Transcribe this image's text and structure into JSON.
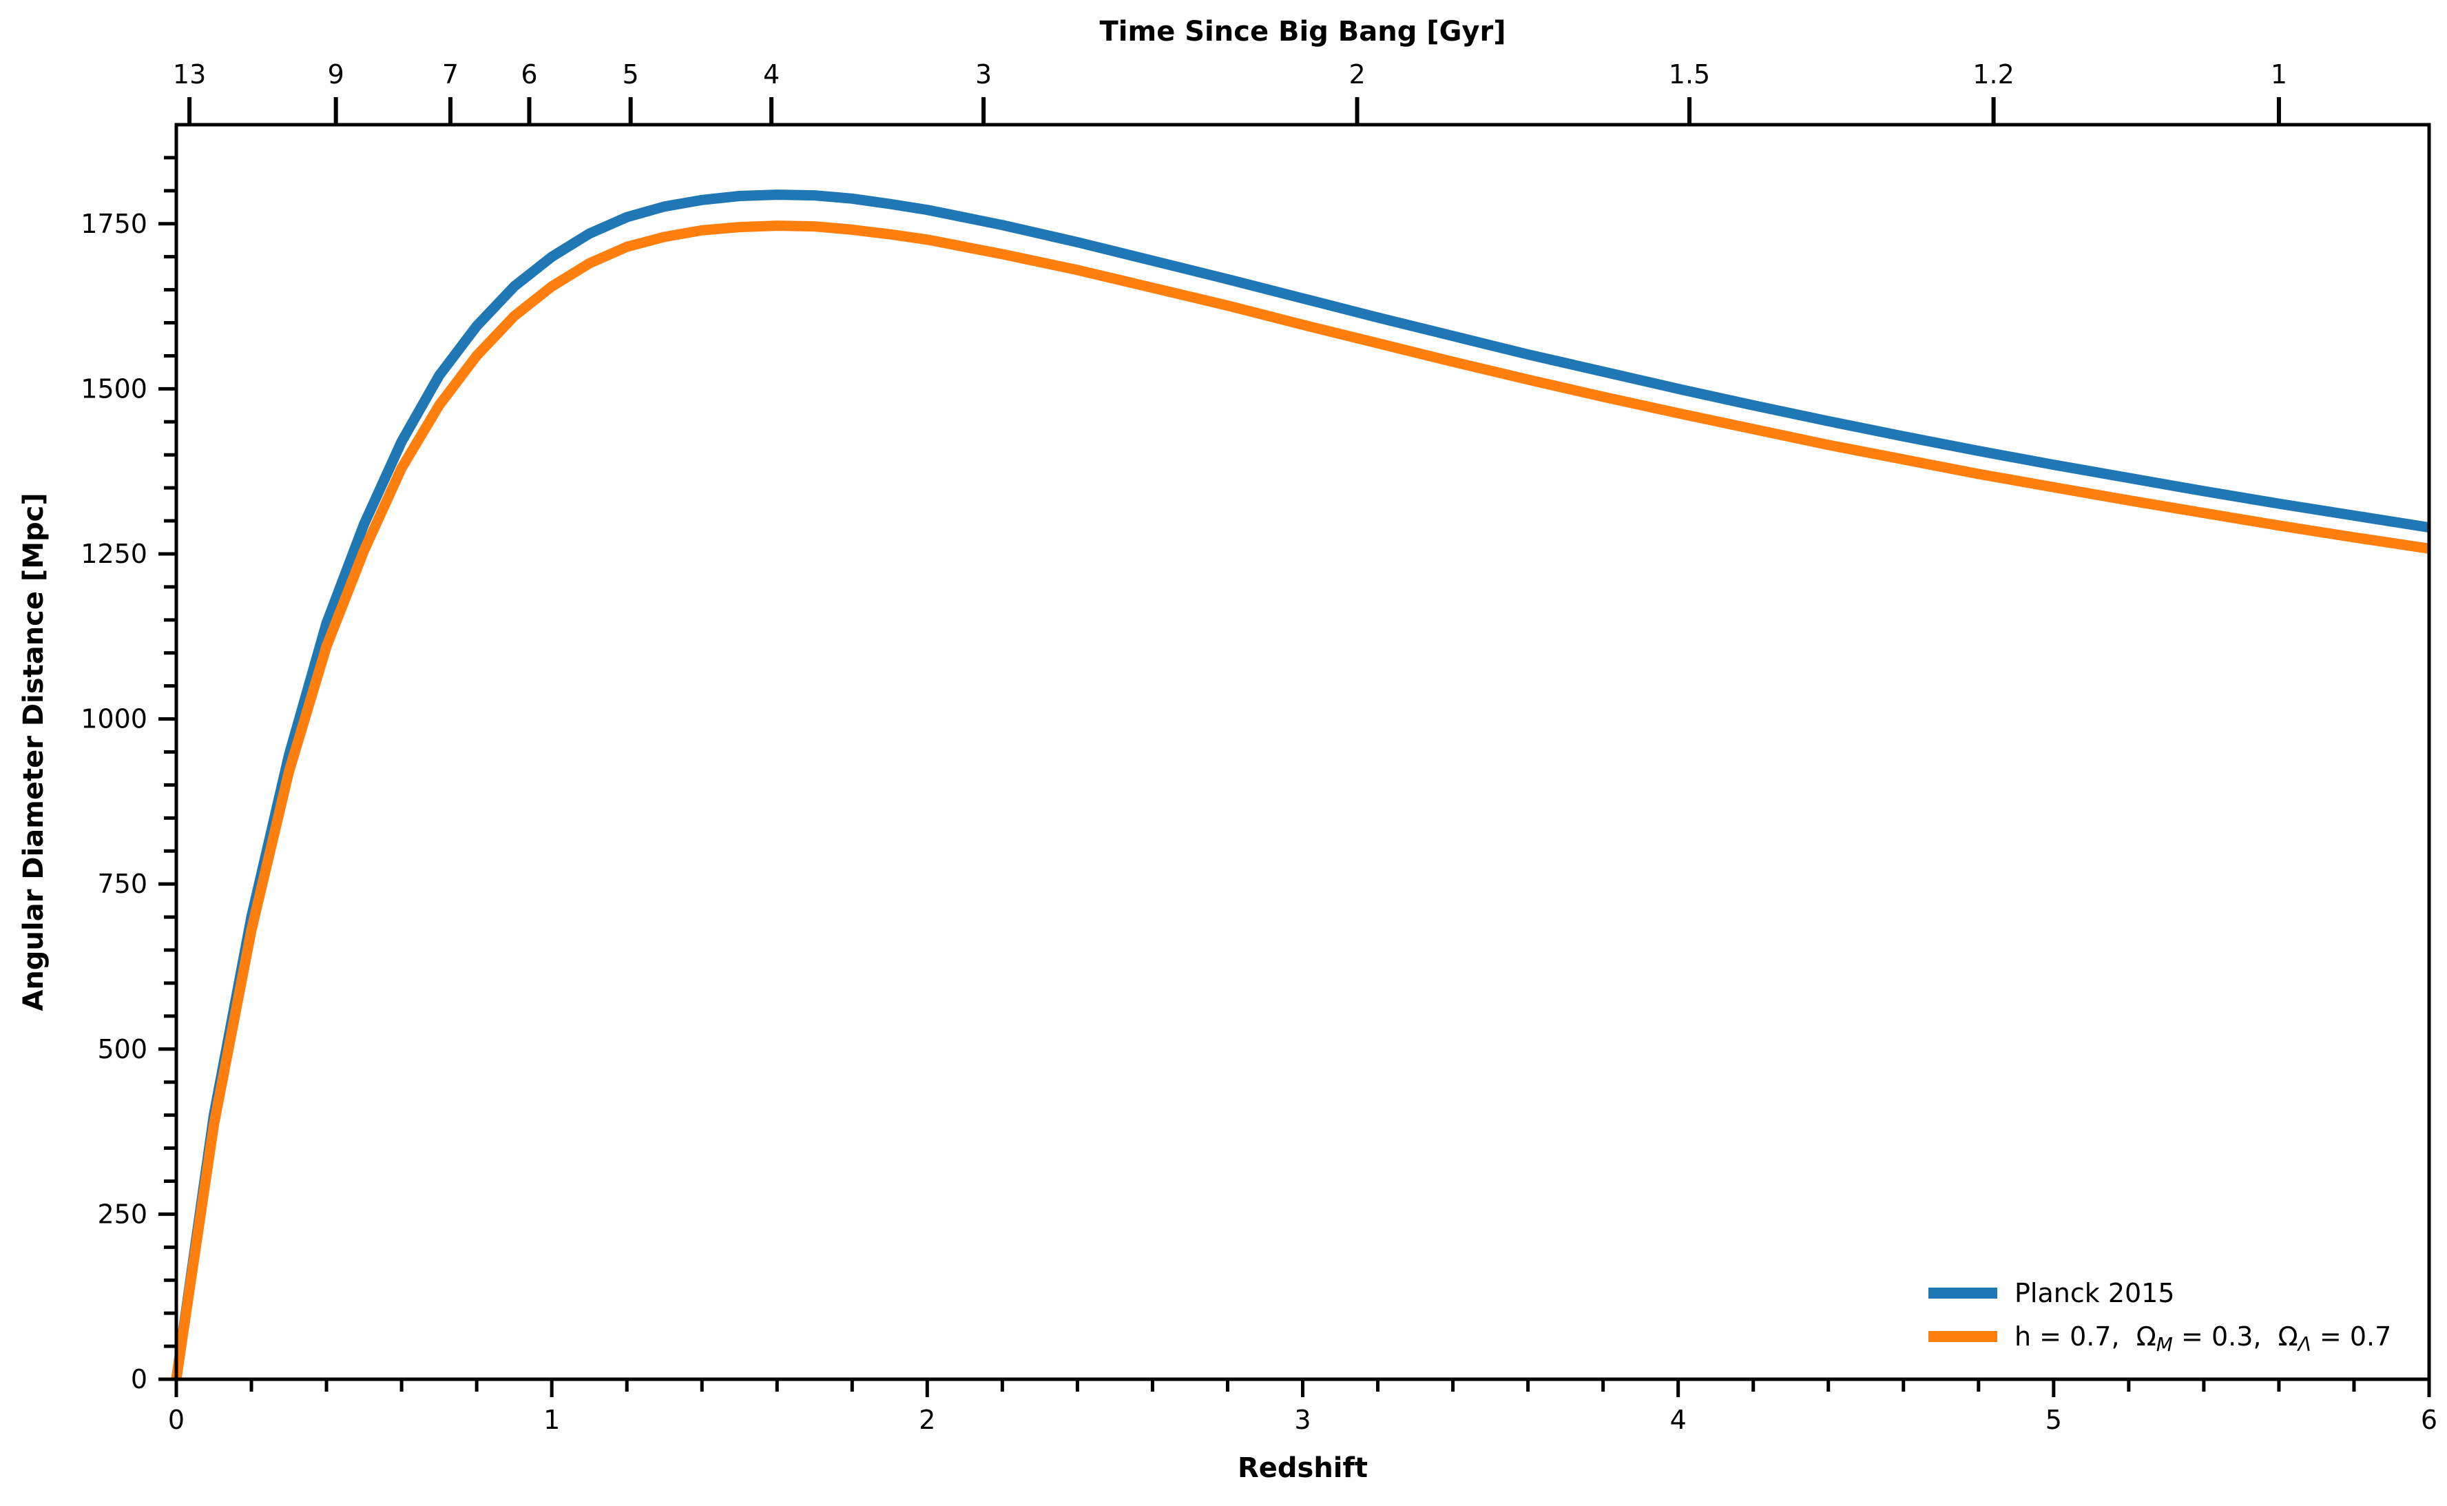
{
  "chart_data": {
    "type": "line",
    "title": "",
    "xlabel": "Redshift",
    "ylabel": "Angular Diameter Distance [Mpc]",
    "top_xlabel": "Time Since Big Bang [Gyr]",
    "xlim": [
      0,
      6
    ],
    "ylim": [
      0,
      1900
    ],
    "x_ticks": [
      0,
      1,
      2,
      3,
      4,
      5,
      6
    ],
    "y_ticks": [
      0,
      250,
      500,
      750,
      1000,
      1250,
      1500,
      1750
    ],
    "top_ticks": [
      {
        "label": "13",
        "redshift": 0.035
      },
      {
        "label": "9",
        "redshift": 0.425
      },
      {
        "label": "7",
        "redshift": 0.73
      },
      {
        "label": "6",
        "redshift": 0.94
      },
      {
        "label": "5",
        "redshift": 1.21
      },
      {
        "label": "4",
        "redshift": 1.585
      },
      {
        "label": "3",
        "redshift": 2.15
      },
      {
        "label": "2",
        "redshift": 3.145
      },
      {
        "label": "1.5",
        "redshift": 4.03
      },
      {
        "label": "1.2",
        "redshift": 4.84
      },
      {
        "label": "1",
        "redshift": 5.6
      }
    ],
    "legend_position": "lower-right",
    "grid": false,
    "x": [
      0,
      0.1,
      0.2,
      0.3,
      0.4,
      0.5,
      0.6,
      0.7,
      0.8,
      0.9,
      1.0,
      1.1,
      1.2,
      1.3,
      1.4,
      1.5,
      1.6,
      1.7,
      1.8,
      1.9,
      2.0,
      2.2,
      2.4,
      2.6,
      2.8,
      3.0,
      3.2,
      3.4,
      3.6,
      3.8,
      4.0,
      4.2,
      4.4,
      4.6,
      4.8,
      5.0,
      5.2,
      5.4,
      5.6,
      5.8,
      6.0
    ],
    "series": [
      {
        "name": "Planck 2015",
        "color": "#1f77b4",
        "values": [
          0,
          400,
          700,
          945,
          1145,
          1295,
          1420,
          1520,
          1595,
          1655,
          1700,
          1735,
          1760,
          1776,
          1786,
          1792,
          1794,
          1793,
          1788,
          1780,
          1771,
          1748,
          1722,
          1694,
          1666,
          1637,
          1608,
          1580,
          1552,
          1526,
          1500,
          1475,
          1451,
          1428,
          1406,
          1385,
          1365,
          1345,
          1326,
          1308,
          1290
        ]
      },
      {
        "name": "h = 0.7,  Ω_M = 0.3,  Ω_Λ = 0.7",
        "color": "#ff7f0e",
        "values": [
          0,
          385,
          680,
          920,
          1110,
          1255,
          1380,
          1475,
          1550,
          1610,
          1655,
          1690,
          1715,
          1730,
          1740,
          1745,
          1747,
          1746,
          1741,
          1734,
          1726,
          1704,
          1680,
          1653,
          1626,
          1597,
          1569,
          1541,
          1514,
          1488,
          1463,
          1439,
          1415,
          1393,
          1371,
          1351,
          1331,
          1312,
          1293,
          1275,
          1258
        ]
      }
    ]
  }
}
